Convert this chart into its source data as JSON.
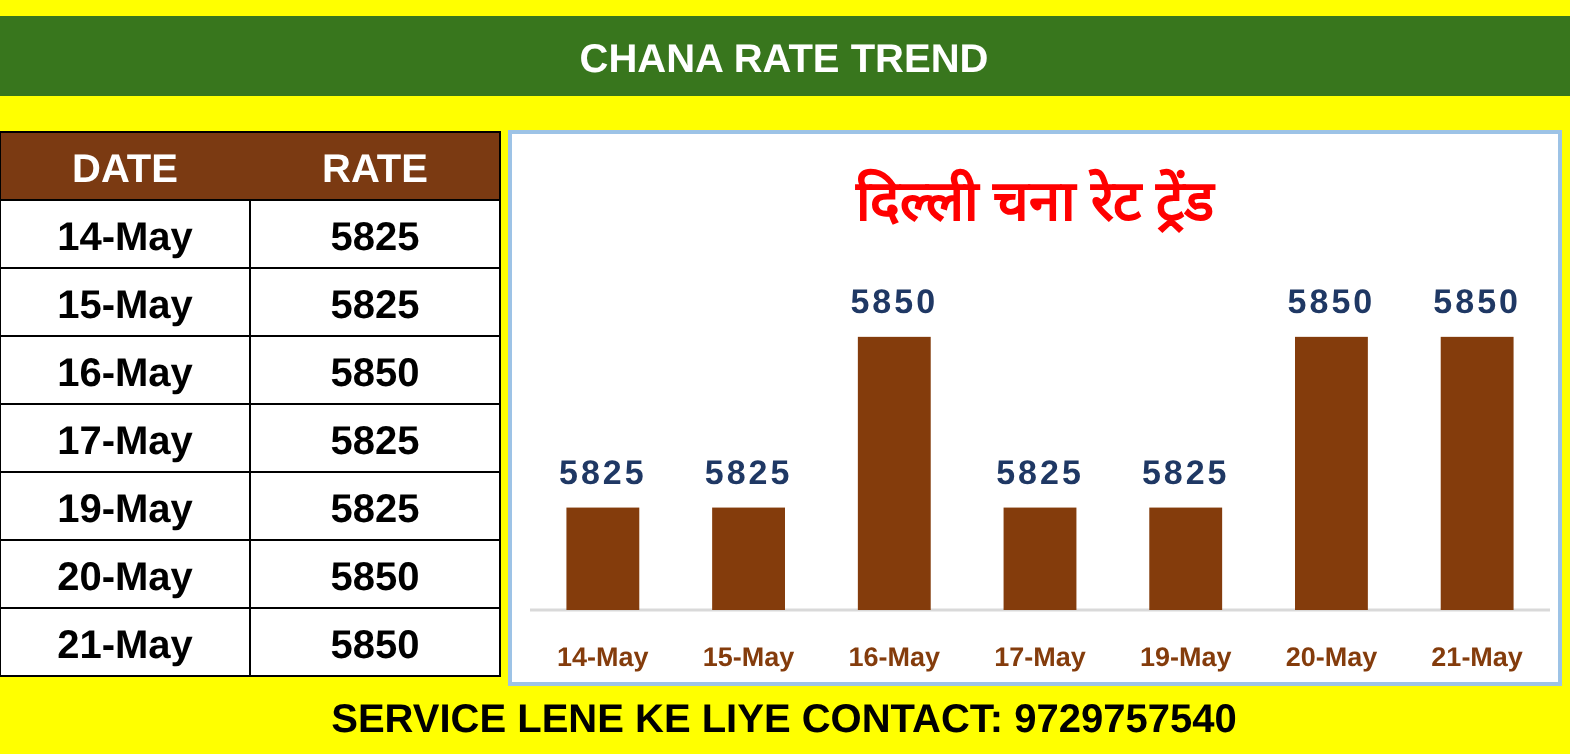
{
  "chart_data": {
    "type": "bar",
    "title": "CHANA RATE TREND",
    "subtitle": "दिल्ली चना रेट ट्रेंड",
    "categories": [
      "14-May",
      "15-May",
      "16-May",
      "17-May",
      "19-May",
      "20-May",
      "21-May"
    ],
    "values": [
      5825,
      5825,
      5850,
      5825,
      5825,
      5850,
      5850
    ],
    "data_labels": true,
    "ylim": [
      5810,
      5880
    ],
    "color": "#843c0c",
    "tick_labels": "x",
    "grid": false,
    "annotations": [
      "SERVICE LENE KE LIYE CONTACT: 9729757540",
      "DATE",
      "RATE",
      "5825",
      "5825",
      "5850",
      "5825",
      "5825",
      "5850",
      "5850"
    ]
  }
}
